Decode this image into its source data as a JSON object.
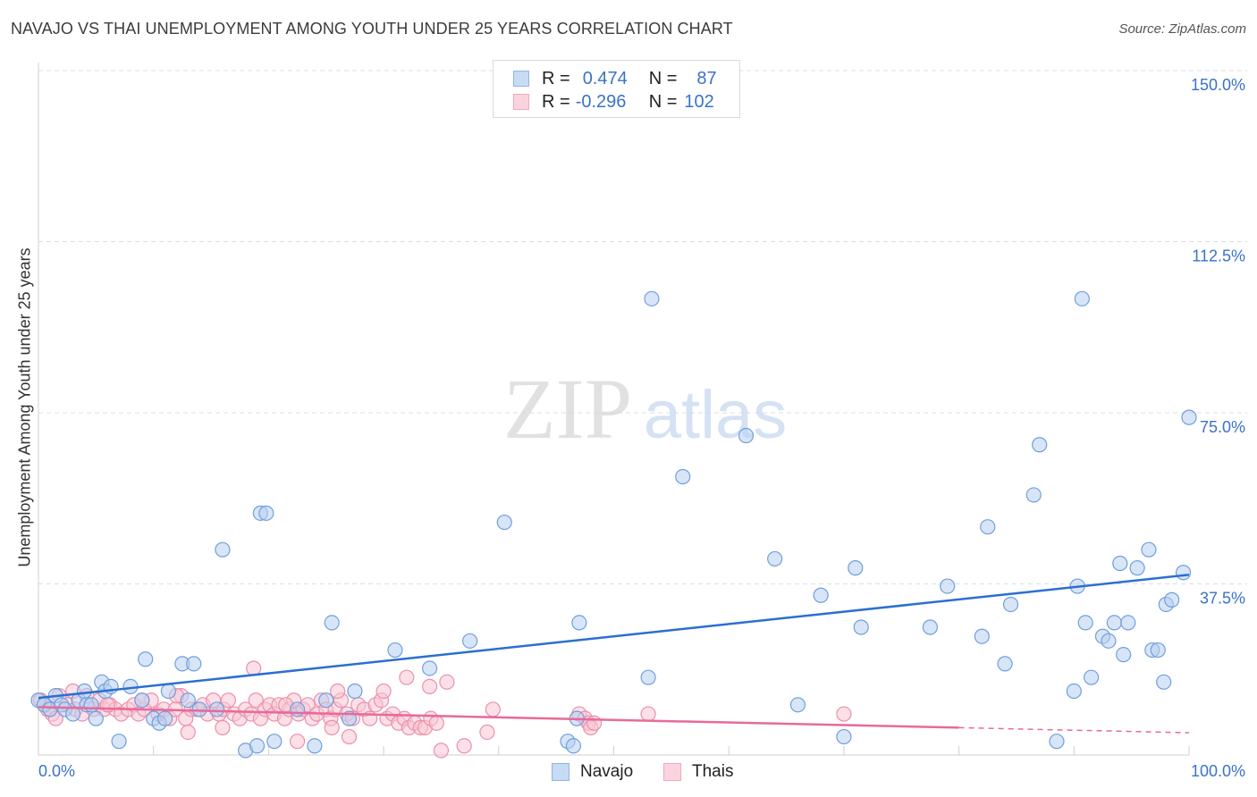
{
  "header": {
    "title": "NAVAJO VS THAI UNEMPLOYMENT AMONG YOUTH UNDER 25 YEARS CORRELATION CHART",
    "source": "Source: ZipAtlas.com"
  },
  "watermark": {
    "zip": "ZIP",
    "atlas": "atlas"
  },
  "legend": {
    "rows": [
      {
        "r_label": "R =",
        "r_value": "0.474",
        "n_label": "N =",
        "n_value": "87",
        "color": "#8fb4e8"
      },
      {
        "r_label": "R =",
        "r_value": "-0.296",
        "n_label": "N =",
        "n_value": "102",
        "color": "#f4a7be"
      }
    ]
  },
  "colors": {
    "navajo_fill": "#b8d0f0",
    "navajo_stroke": "#6f9fdc",
    "navajo_line": "#2b6fd0",
    "thais_fill": "#f8c6d4",
    "thais_stroke": "#ec8fab",
    "thais_line": "#e8699a",
    "tick_label": "#3a72c8",
    "grid": "#d9dde3"
  },
  "chart_data": {
    "type": "scatter",
    "title": "NAVAJO VS THAI UNEMPLOYMENT AMONG YOUTH UNDER 25 YEARS CORRELATION CHART",
    "xlabel": "",
    "ylabel": "Unemployment Among Youth under 25 years",
    "xlim": [
      0,
      100
    ],
    "ylim": [
      0,
      150
    ],
    "x_tick_labels": [
      "0.0%",
      "100.0%"
    ],
    "y_ticks": [
      37.5,
      75.0,
      112.5,
      150.0
    ],
    "y_tick_labels": [
      "37.5%",
      "75.0%",
      "112.5%",
      "150.0%"
    ],
    "grid": true,
    "legend_position": "bottom",
    "series": [
      {
        "name": "Navajo",
        "trend": {
          "x": [
            0,
            100
          ],
          "y": [
            12.5,
            39.5
          ]
        },
        "points": [
          [
            0,
            12
          ],
          [
            0.5,
            11
          ],
          [
            1,
            10
          ],
          [
            1.5,
            13
          ],
          [
            2,
            11
          ],
          [
            2.3,
            10
          ],
          [
            3,
            9
          ],
          [
            3.5,
            12
          ],
          [
            4,
            14
          ],
          [
            4.2,
            11
          ],
          [
            4.6,
            11
          ],
          [
            5,
            8
          ],
          [
            5.5,
            16
          ],
          [
            5.8,
            14
          ],
          [
            6.3,
            15
          ],
          [
            7,
            3
          ],
          [
            8,
            15
          ],
          [
            9,
            12
          ],
          [
            9.3,
            21
          ],
          [
            10,
            8
          ],
          [
            10.5,
            7
          ],
          [
            11,
            8
          ],
          [
            11.3,
            14
          ],
          [
            12.5,
            20
          ],
          [
            13,
            12
          ],
          [
            13.5,
            20
          ],
          [
            14,
            10
          ],
          [
            15.5,
            10
          ],
          [
            16,
            45
          ],
          [
            18,
            1
          ],
          [
            19,
            2
          ],
          [
            19.3,
            53
          ],
          [
            19.8,
            53
          ],
          [
            20.5,
            3
          ],
          [
            22.5,
            10
          ],
          [
            24,
            2
          ],
          [
            25,
            12
          ],
          [
            25.5,
            29
          ],
          [
            27,
            8
          ],
          [
            27.5,
            14
          ],
          [
            31,
            23
          ],
          [
            34,
            19
          ],
          [
            37.5,
            25
          ],
          [
            40.5,
            51
          ],
          [
            46,
            3
          ],
          [
            46.5,
            2
          ],
          [
            46.8,
            8
          ],
          [
            47,
            29
          ],
          [
            53,
            17
          ],
          [
            53.3,
            100
          ],
          [
            56,
            61
          ],
          [
            61.5,
            70
          ],
          [
            64,
            43
          ],
          [
            66,
            11
          ],
          [
            68,
            35
          ],
          [
            70,
            4
          ],
          [
            71,
            41
          ],
          [
            71.5,
            28
          ],
          [
            77.5,
            28
          ],
          [
            79,
            37
          ],
          [
            82,
            26
          ],
          [
            82.5,
            50
          ],
          [
            84,
            20
          ],
          [
            84.5,
            33
          ],
          [
            86.5,
            57
          ],
          [
            87,
            68
          ],
          [
            88.5,
            3
          ],
          [
            90,
            14
          ],
          [
            90.3,
            37
          ],
          [
            90.7,
            100
          ],
          [
            91,
            29
          ],
          [
            91.5,
            17
          ],
          [
            92.5,
            26
          ],
          [
            93,
            25
          ],
          [
            93.5,
            29
          ],
          [
            94,
            42
          ],
          [
            94.3,
            22
          ],
          [
            94.7,
            29
          ],
          [
            95.5,
            41
          ],
          [
            96.5,
            45
          ],
          [
            96.8,
            23
          ],
          [
            97.3,
            23
          ],
          [
            97.8,
            16
          ],
          [
            98,
            33
          ],
          [
            98.5,
            34
          ],
          [
            99.5,
            40
          ],
          [
            100,
            74
          ]
        ]
      },
      {
        "name": "Thais",
        "trend": {
          "x": [
            0,
            80
          ],
          "y": [
            10.5,
            6.0
          ]
        },
        "points": [
          [
            0.2,
            12
          ],
          [
            0.8,
            10
          ],
          [
            1.2,
            9
          ],
          [
            1.8,
            13
          ],
          [
            2.5,
            11
          ],
          [
            3.2,
            10
          ],
          [
            3.8,
            9
          ],
          [
            4.2,
            13
          ],
          [
            4.8,
            10
          ],
          [
            5.3,
            12
          ],
          [
            5.7,
            10
          ],
          [
            6.2,
            11
          ],
          [
            6.7,
            10
          ],
          [
            7.2,
            9
          ],
          [
            7.8,
            10
          ],
          [
            8.3,
            11
          ],
          [
            8.7,
            9
          ],
          [
            9.2,
            10
          ],
          [
            9.8,
            12
          ],
          [
            10.4,
            9
          ],
          [
            10.9,
            10
          ],
          [
            11.4,
            8
          ],
          [
            11.9,
            10
          ],
          [
            12.4,
            13
          ],
          [
            12.8,
            8
          ],
          [
            13.3,
            10
          ],
          [
            13.8,
            10
          ],
          [
            14.3,
            11
          ],
          [
            14.7,
            9
          ],
          [
            15.2,
            12
          ],
          [
            15.7,
            9
          ],
          [
            16.1,
            10
          ],
          [
            16.5,
            12
          ],
          [
            17,
            9
          ],
          [
            17.5,
            8
          ],
          [
            18,
            10
          ],
          [
            18.5,
            9
          ],
          [
            18.9,
            12
          ],
          [
            19.3,
            8
          ],
          [
            19.7,
            10
          ],
          [
            20.1,
            11
          ],
          [
            20.5,
            9
          ],
          [
            20.9,
            11
          ],
          [
            21.4,
            8
          ],
          [
            21.8,
            10
          ],
          [
            22.2,
            12
          ],
          [
            22.6,
            9
          ],
          [
            23,
            10
          ],
          [
            23.4,
            11
          ],
          [
            23.8,
            8
          ],
          [
            24.2,
            9
          ],
          [
            24.6,
            12
          ],
          [
            25,
            10
          ],
          [
            25.4,
            8
          ],
          [
            25.8,
            10
          ],
          [
            26.3,
            12
          ],
          [
            26.8,
            9
          ],
          [
            27.3,
            8
          ],
          [
            27.8,
            11
          ],
          [
            28.3,
            10
          ],
          [
            28.8,
            8
          ],
          [
            29.3,
            11
          ],
          [
            29.8,
            12
          ],
          [
            30.3,
            8
          ],
          [
            30.8,
            9
          ],
          [
            31.3,
            7
          ],
          [
            31.8,
            8
          ],
          [
            32.2,
            6
          ],
          [
            32.7,
            7
          ],
          [
            33.2,
            6
          ],
          [
            33.6,
            6
          ],
          [
            34.1,
            8
          ],
          [
            34.6,
            7
          ],
          [
            13,
            5
          ],
          [
            22.5,
            3
          ],
          [
            25.5,
            6
          ],
          [
            27,
            4
          ],
          [
            35,
            1
          ],
          [
            37,
            2
          ],
          [
            18.7,
            19
          ],
          [
            26,
            14
          ],
          [
            30,
            14
          ],
          [
            32,
            17
          ],
          [
            34,
            15
          ],
          [
            35.5,
            16
          ],
          [
            21.5,
            11
          ],
          [
            16,
            6
          ],
          [
            12,
            13
          ],
          [
            9,
            12
          ],
          [
            6,
            11
          ],
          [
            3,
            14
          ],
          [
            1.5,
            8
          ],
          [
            0.5,
            11
          ],
          [
            47,
            9
          ],
          [
            47.5,
            8
          ],
          [
            47.8,
            7
          ],
          [
            48,
            6
          ],
          [
            48.3,
            7
          ],
          [
            53,
            9
          ],
          [
            70,
            9
          ],
          [
            39,
            5
          ],
          [
            39.5,
            10
          ]
        ]
      }
    ]
  },
  "bottom_legend": {
    "items": [
      "Navajo",
      "Thais"
    ]
  }
}
